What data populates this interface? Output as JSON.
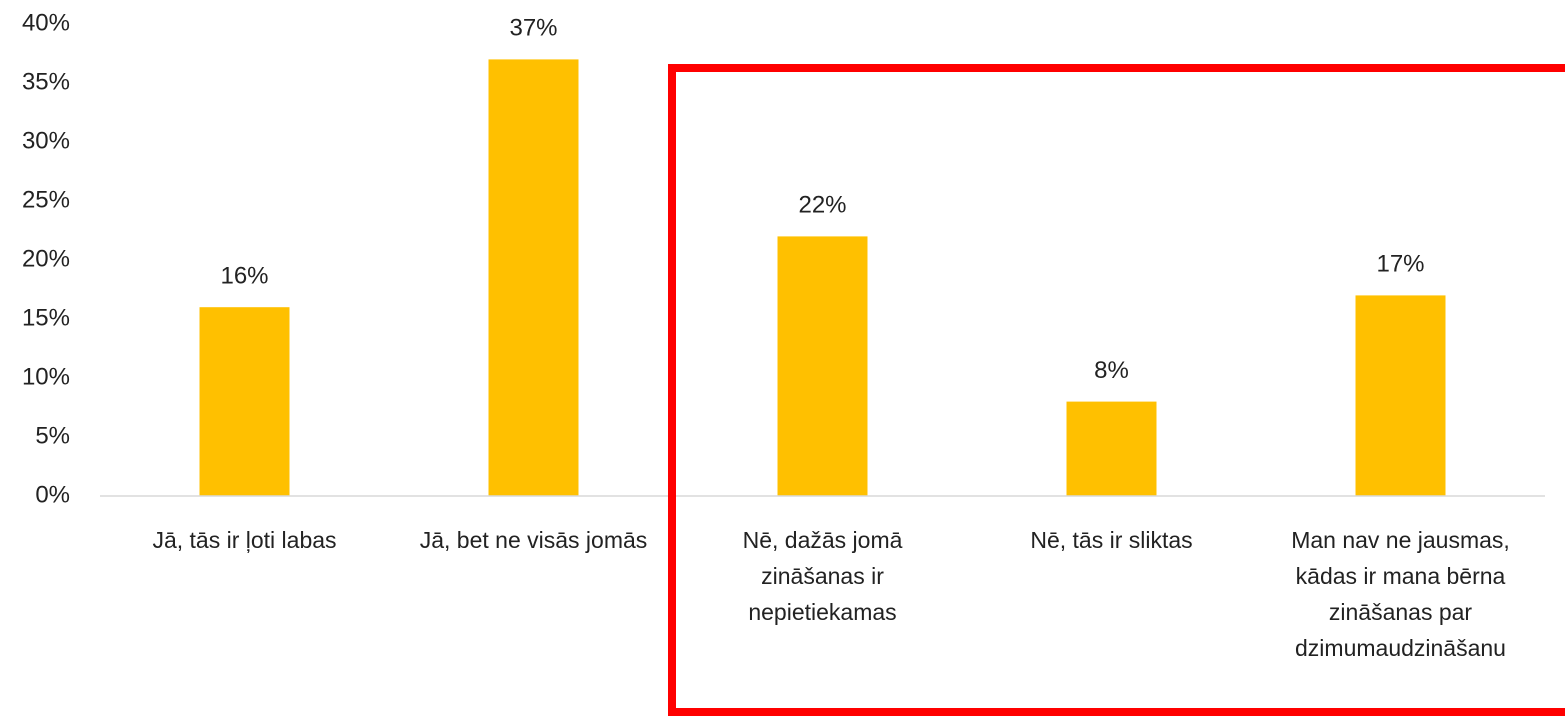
{
  "chart_data": {
    "type": "bar",
    "categories": [
      "Jā, tās ir ļoti labas",
      "Jā, bet ne visās jomās",
      "Nē, dažās jomā zināšanas ir nepietiekamas",
      "Nē, tās ir sliktas",
      "Man nav ne jausmas, kādas ir mana bērna zināšanas par dzimumaudzināšanu"
    ],
    "values": [
      16,
      37,
      22,
      8,
      17
    ],
    "value_labels": [
      "16%",
      "37%",
      "22%",
      "8%",
      "17%"
    ],
    "color": "#ffc000",
    "ylim": [
      0,
      40
    ],
    "yticks": [
      {
        "value": 0,
        "label": "0%"
      },
      {
        "value": 5,
        "label": "5%"
      },
      {
        "value": 10,
        "label": "10%"
      },
      {
        "value": 15,
        "label": "15%"
      },
      {
        "value": 20,
        "label": "20%"
      },
      {
        "value": 25,
        "label": "25%"
      },
      {
        "value": 30,
        "label": "30%"
      },
      {
        "value": 35,
        "label": "35%"
      },
      {
        "value": 40,
        "label": "40%"
      }
    ],
    "grid": false
  }
}
